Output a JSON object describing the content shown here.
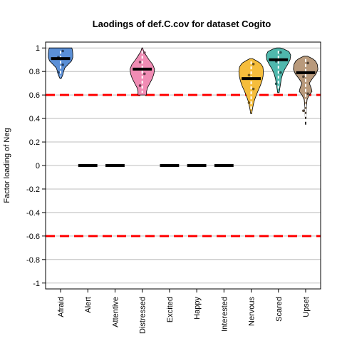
{
  "chart_data": {
    "type": "violin",
    "title": "Laodings of def.C.cov for dataset Cogito",
    "xlabel": "",
    "ylabel": "Factor loading of Neg",
    "ylim": [
      -1.05,
      1.05
    ],
    "yticks": [
      -1,
      -0.8,
      -0.6,
      -0.4,
      -0.2,
      0,
      0.2,
      0.4,
      0.6,
      0.8,
      1
    ],
    "ytick_labels": [
      "-1",
      "-0.8",
      "-0.6",
      "-0.4",
      "-0.2",
      "0",
      "0.2",
      "0.4",
      "0.6",
      "0.8",
      "1"
    ],
    "grid": true,
    "thresholds": [
      0.6,
      -0.6
    ],
    "threshold_color": "#ff0000",
    "categories": [
      "Afraid",
      "Alert",
      "Attentive",
      "Distressed",
      "Excited",
      "Happy",
      "Interested",
      "Nervous",
      "Scared",
      "Upset"
    ],
    "items": [
      {
        "label": "Afraid",
        "median": 0.91,
        "min": 0.74,
        "max": 1.0,
        "color": "#5b8fd6",
        "profile": [
          [
            0.74,
            0.05
          ],
          [
            0.77,
            0.18
          ],
          [
            0.8,
            0.25
          ],
          [
            0.83,
            0.35
          ],
          [
            0.86,
            0.62
          ],
          [
            0.89,
            0.9
          ],
          [
            0.92,
            1.0
          ],
          [
            0.95,
            1.0
          ],
          [
            0.98,
            0.97
          ],
          [
            1.0,
            0.92
          ]
        ]
      },
      {
        "label": "Alert",
        "median": 0.0,
        "color": "#000000"
      },
      {
        "label": "Attentive",
        "median": 0.0,
        "color": "#000000"
      },
      {
        "label": "Distressed",
        "median": 0.82,
        "min": 0.6,
        "max": 1.0,
        "color": "#f08cb4",
        "profile": [
          [
            0.6,
            0.35
          ],
          [
            0.63,
            0.35
          ],
          [
            0.66,
            0.42
          ],
          [
            0.7,
            0.62
          ],
          [
            0.74,
            0.82
          ],
          [
            0.78,
            0.95
          ],
          [
            0.82,
            1.0
          ],
          [
            0.86,
            0.85
          ],
          [
            0.9,
            0.55
          ],
          [
            0.94,
            0.3
          ],
          [
            0.97,
            0.12
          ],
          [
            1.0,
            0.03
          ]
        ]
      },
      {
        "label": "Excited",
        "median": 0.0,
        "color": "#000000"
      },
      {
        "label": "Happy",
        "median": 0.0,
        "color": "#000000"
      },
      {
        "label": "Interested",
        "median": 0.0,
        "color": "#000000"
      },
      {
        "label": "Nervous",
        "median": 0.74,
        "min": 0.44,
        "max": 0.91,
        "color": "#f5bd3c",
        "profile": [
          [
            0.44,
            0.04
          ],
          [
            0.48,
            0.1
          ],
          [
            0.52,
            0.18
          ],
          [
            0.56,
            0.28
          ],
          [
            0.6,
            0.42
          ],
          [
            0.64,
            0.58
          ],
          [
            0.68,
            0.75
          ],
          [
            0.72,
            0.88
          ],
          [
            0.76,
            0.97
          ],
          [
            0.8,
            1.0
          ],
          [
            0.84,
            0.95
          ],
          [
            0.87,
            0.75
          ],
          [
            0.89,
            0.45
          ],
          [
            0.91,
            0.1
          ]
        ]
      },
      {
        "label": "Scared",
        "median": 0.9,
        "min": 0.62,
        "max": 1.0,
        "color": "#4fb8ad",
        "profile": [
          [
            0.62,
            0.06
          ],
          [
            0.66,
            0.12
          ],
          [
            0.7,
            0.18
          ],
          [
            0.74,
            0.24
          ],
          [
            0.78,
            0.35
          ],
          [
            0.82,
            0.52
          ],
          [
            0.86,
            0.75
          ],
          [
            0.9,
            0.95
          ],
          [
            0.94,
            1.0
          ],
          [
            0.97,
            0.85
          ],
          [
            0.99,
            0.45
          ],
          [
            1.0,
            0.15
          ]
        ]
      },
      {
        "label": "Upset",
        "median": 0.79,
        "min": 0.35,
        "max": 0.93,
        "color": "#b99a7c",
        "profile": [
          [
            0.35,
            0.02
          ],
          [
            0.42,
            0.04
          ],
          [
            0.5,
            0.06
          ],
          [
            0.56,
            0.12
          ],
          [
            0.6,
            0.3
          ],
          [
            0.63,
            0.52
          ],
          [
            0.66,
            0.45
          ],
          [
            0.7,
            0.3
          ],
          [
            0.74,
            0.55
          ],
          [
            0.78,
            0.85
          ],
          [
            0.82,
            1.0
          ],
          [
            0.86,
            0.95
          ],
          [
            0.89,
            0.8
          ],
          [
            0.91,
            0.55
          ],
          [
            0.93,
            0.15
          ]
        ]
      }
    ]
  }
}
